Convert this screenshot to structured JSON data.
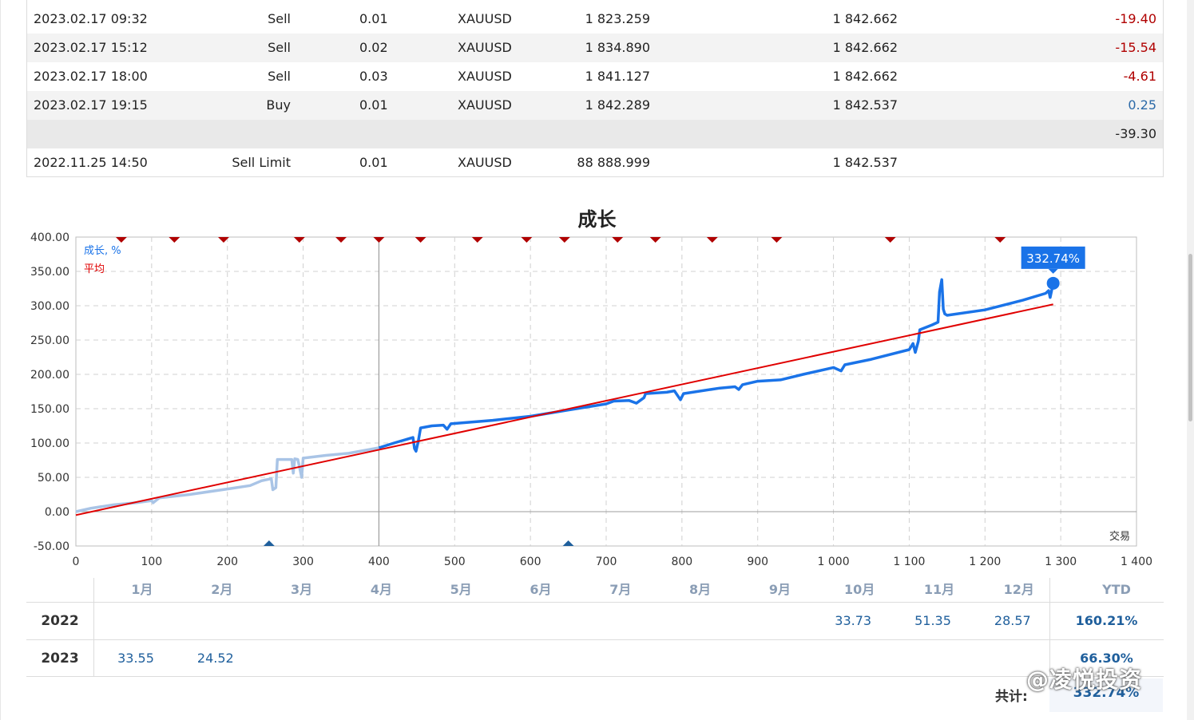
{
  "trades": {
    "rows": [
      {
        "time": "2023.02.17 09:32",
        "type": "Sell",
        "volume": "0.01",
        "symbol": "XAUUSD",
        "open": "1 823.259",
        "current": "1 842.662",
        "profit": "-19.40"
      },
      {
        "time": "2023.02.17 15:12",
        "type": "Sell",
        "volume": "0.02",
        "symbol": "XAUUSD",
        "open": "1 834.890",
        "current": "1 842.662",
        "profit": "-15.54"
      },
      {
        "time": "2023.02.17 18:00",
        "type": "Sell",
        "volume": "0.03",
        "symbol": "XAUUSD",
        "open": "1 841.127",
        "current": "1 842.662",
        "profit": "-4.61"
      },
      {
        "time": "2023.02.17 19:15",
        "type": "Buy",
        "volume": "0.01",
        "symbol": "XAUUSD",
        "open": "1 842.289",
        "current": "1 842.537",
        "profit": "0.25"
      }
    ],
    "total_profit": "-39.30",
    "pending": {
      "time": "2022.11.25 14:50",
      "type": "Sell Limit",
      "volume": "0.01",
      "symbol": "XAUUSD",
      "open": "88 888.999",
      "current": "1 842.537"
    },
    "colors": {
      "negative": "#b00000",
      "positive": "#2c6aa8"
    }
  },
  "chart_data": {
    "type": "line",
    "title": "成长",
    "legend": [
      {
        "name": "成长, %",
        "color": "#1a73e8"
      },
      {
        "name": "平均",
        "color": "#e00000"
      }
    ],
    "xlabel": "交易",
    "xlim": [
      0,
      1400
    ],
    "ylim": [
      -50,
      400
    ],
    "x_ticks": [
      "0",
      "100",
      "200",
      "300",
      "400",
      "500",
      "600",
      "700",
      "800",
      "900",
      "1 000",
      "1 100",
      "1 200",
      "1 300",
      "1 400"
    ],
    "y_ticks": [
      "400.00",
      "350.00",
      "300.00",
      "250.00",
      "200.00",
      "150.00",
      "100.00",
      "50.00",
      "0.00",
      "-50.00"
    ],
    "grid": true,
    "current_label": "332.74%",
    "history_split_x": 400,
    "series": [
      {
        "name": "成长, %",
        "color": "#1a73e8",
        "faded_color": "#a9c4e6",
        "points": [
          [
            0,
            0
          ],
          [
            20,
            5
          ],
          [
            50,
            10
          ],
          [
            80,
            13
          ],
          [
            100,
            16
          ],
          [
            102,
            13
          ],
          [
            110,
            20
          ],
          [
            150,
            25
          ],
          [
            200,
            33
          ],
          [
            230,
            38
          ],
          [
            245,
            45
          ],
          [
            258,
            48
          ],
          [
            260,
            32
          ],
          [
            264,
            35
          ],
          [
            266,
            76
          ],
          [
            285,
            76
          ],
          [
            287,
            56
          ],
          [
            289,
            77
          ],
          [
            293,
            76
          ],
          [
            295,
            66
          ],
          [
            298,
            50
          ],
          [
            300,
            78
          ],
          [
            330,
            82
          ],
          [
            360,
            85
          ],
          [
            400,
            93
          ],
          [
            420,
            100
          ],
          [
            445,
            108
          ],
          [
            447,
            92
          ],
          [
            449,
            88
          ],
          [
            452,
            103
          ],
          [
            455,
            122
          ],
          [
            470,
            125
          ],
          [
            485,
            126
          ],
          [
            490,
            120
          ],
          [
            495,
            128
          ],
          [
            550,
            133
          ],
          [
            600,
            139
          ],
          [
            650,
            148
          ],
          [
            700,
            157
          ],
          [
            710,
            161
          ],
          [
            730,
            162
          ],
          [
            740,
            158
          ],
          [
            750,
            166
          ],
          [
            752,
            172
          ],
          [
            780,
            174
          ],
          [
            790,
            176
          ],
          [
            798,
            163
          ],
          [
            802,
            172
          ],
          [
            850,
            180
          ],
          [
            870,
            182
          ],
          [
            875,
            178
          ],
          [
            880,
            185
          ],
          [
            900,
            190
          ],
          [
            930,
            192
          ],
          [
            960,
            200
          ],
          [
            1000,
            210
          ],
          [
            1010,
            205
          ],
          [
            1015,
            214
          ],
          [
            1050,
            222
          ],
          [
            1100,
            236
          ],
          [
            1105,
            245
          ],
          [
            1108,
            232
          ],
          [
            1112,
            248
          ],
          [
            1114,
            265
          ],
          [
            1130,
            272
          ],
          [
            1138,
            276
          ],
          [
            1140,
            320
          ],
          [
            1143,
            338
          ],
          [
            1145,
            295
          ],
          [
            1147,
            288
          ],
          [
            1150,
            286
          ],
          [
            1200,
            294
          ],
          [
            1250,
            308
          ],
          [
            1280,
            318
          ],
          [
            1284,
            322
          ],
          [
            1286,
            312
          ],
          [
            1290,
            332.74
          ]
        ]
      },
      {
        "name": "平均",
        "color": "#e00000",
        "points": [
          [
            0,
            -5
          ],
          [
            1290,
            302
          ]
        ]
      }
    ],
    "top_markers_x": [
      60,
      130,
      195,
      295,
      350,
      400,
      455,
      530,
      595,
      645,
      715,
      765,
      840,
      925,
      1075,
      1220
    ],
    "bottom_markers_x": [
      255,
      650
    ]
  },
  "monthly": {
    "months": [
      "1月",
      "2月",
      "3月",
      "4月",
      "5月",
      "6月",
      "7月",
      "8月",
      "9月",
      "10月",
      "11月",
      "12月"
    ],
    "ytd_label": "YTD",
    "years": [
      {
        "year": "2022",
        "values": [
          "",
          "",
          "",
          "",
          "",
          "",
          "",
          "",
          "",
          "33.73",
          "51.35",
          "28.57"
        ],
        "ytd": "160.21%"
      },
      {
        "year": "2023",
        "values": [
          "33.55",
          "24.52",
          "",
          "",
          "",
          "",
          "",
          "",
          "",
          "",
          "",
          ""
        ],
        "ytd": "66.30%"
      }
    ],
    "total_label": "共计:",
    "total_value": "332.74%"
  },
  "watermark": "@凌悦投资"
}
